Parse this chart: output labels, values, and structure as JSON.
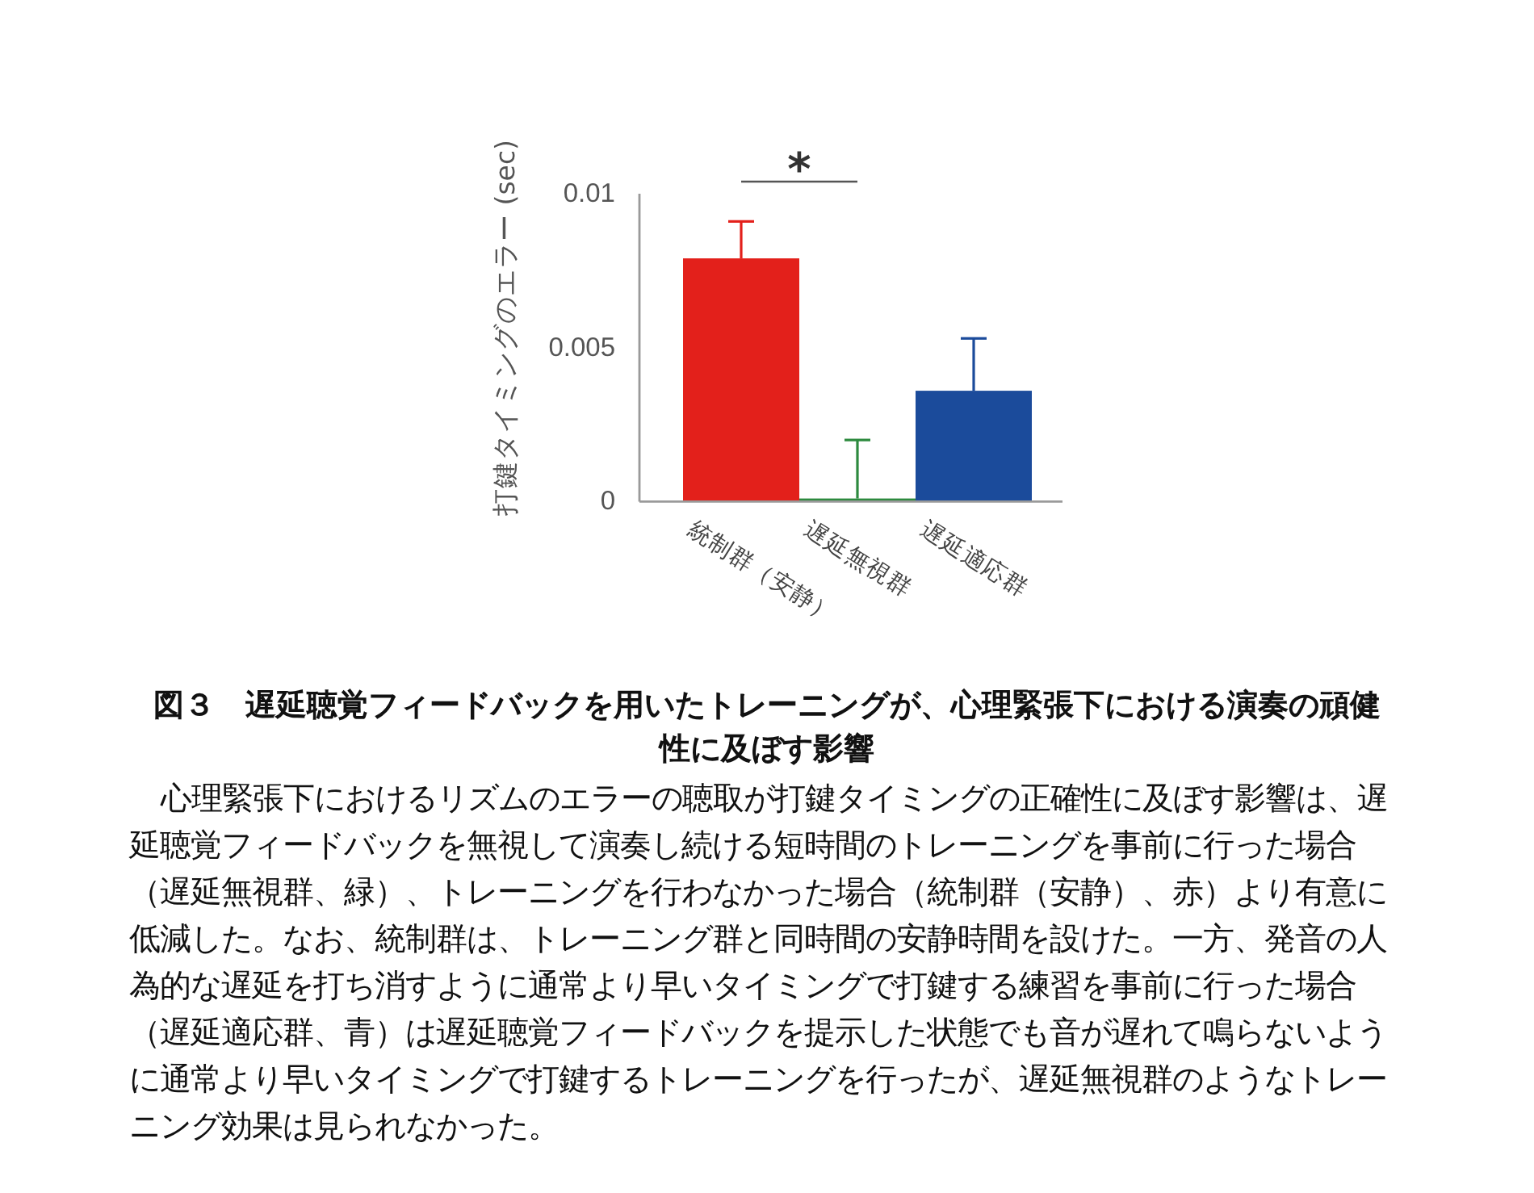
{
  "chart_data": {
    "type": "bar",
    "title": "図３　遅延聴覚フィードバックを用いたトレーニングが、心理緊張下における演奏の頑健性に及ぼす影響",
    "ylabel": "打鍵タイミングのエラー (sec)",
    "categories": [
      "統制群（安静）",
      "遅延無視群",
      "遅延適応群"
    ],
    "values": [
      0.0079,
      0.0001,
      0.0036
    ],
    "colors": [
      "#e3201b",
      "#2d8a3e",
      "#1b4b9b"
    ],
    "errors": [
      [
        0.0079,
        0.0091
      ],
      [
        0.0001,
        0.002
      ],
      [
        0.0036,
        0.0053
      ]
    ],
    "ylim": [
      0,
      0.01
    ],
    "yticks": [
      0,
      0.005,
      0.01
    ],
    "annotations": [
      "*",
      "心理緊張下におけるリズムのエラーの聴取が打鍵タイミングの正確性に及ぼす影響は、遅延聴覚フィードバックを無視して演奏し続ける短時間のトレーニングを事前に行った場合（遅延無視群、緑）、トレーニングを行わなかった場合（統制群（安静）、赤）より有意に低減した。なお、統制群は、トレーニング群と同時間の安静時間を設けた。一方、発音の人為的な遅延を打ち消すように通常より早いタイミングで打鍵する練習を事前に行った場合（遅延適応群、青）は遅延聴覚フィードバックを提示した状態でも音が遅れて鳴らないように通常より早いタイミングで打鍵するトレーニングを行ったが、遅延無視群のようなトレーニング効果は見られなかった。"
    ]
  }
}
